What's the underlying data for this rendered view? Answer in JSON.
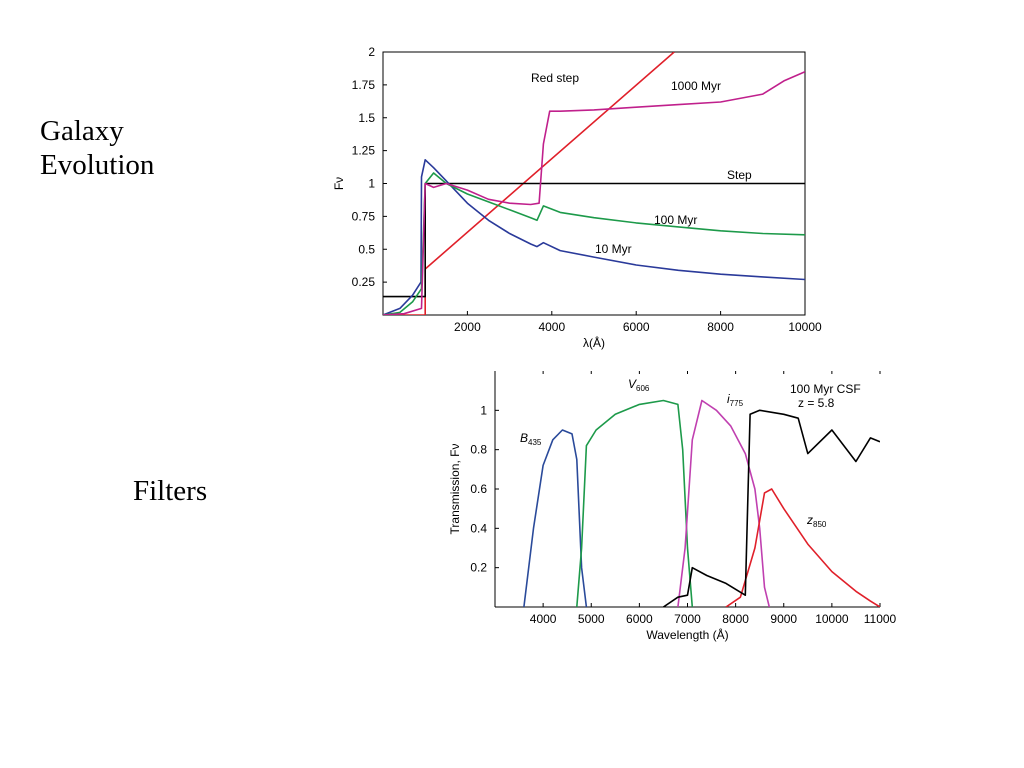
{
  "slide": {
    "label_evolution": "Galaxy\nEvolution",
    "label_filters": "Filters"
  },
  "chart_data": [
    {
      "type": "line",
      "xlabel": "λ(Å)",
      "ylabel": "Fν",
      "xlim": [
        0,
        10000
      ],
      "ylim": [
        0,
        2
      ],
      "x_ticks": [
        "2000",
        "4000",
        "6000",
        "8000",
        "10000"
      ],
      "y_ticks": [
        "0.25",
        "0.5",
        "0.75",
        "1",
        "1.25",
        "1.5",
        "1.75",
        "2"
      ],
      "annotations": [
        "Red step",
        "1000 Myr",
        "Step",
        "100 Myr",
        "10 Myr"
      ],
      "series": [
        {
          "name": "Red step",
          "color": "#e0202a",
          "x": [
            0,
            1000,
            1000,
            6900
          ],
          "y": [
            0,
            0,
            0.35,
            2.0
          ]
        },
        {
          "name": "Step",
          "color": "#000000",
          "x": [
            0,
            1000,
            1000,
            10000
          ],
          "y": [
            0.14,
            0.14,
            1.0,
            1.0
          ]
        },
        {
          "name": "10 Myr",
          "color": "#2a3a9a",
          "x": [
            0,
            400,
            700,
            900,
            912,
            1000,
            1200,
            1500,
            2000,
            2500,
            3000,
            3500,
            3650,
            3800,
            4200,
            5000,
            6000,
            7000,
            8000,
            9000,
            10000
          ],
          "y": [
            0,
            0.05,
            0.15,
            0.25,
            1.05,
            1.18,
            1.12,
            1.02,
            0.85,
            0.72,
            0.62,
            0.54,
            0.52,
            0.55,
            0.49,
            0.44,
            0.38,
            0.34,
            0.31,
            0.29,
            0.27
          ]
        },
        {
          "name": "100 Myr",
          "color": "#1d9a4a",
          "x": [
            0,
            400,
            700,
            912,
            1000,
            1200,
            1500,
            2000,
            2500,
            3000,
            3500,
            3650,
            3800,
            4200,
            5000,
            6000,
            7000,
            8000,
            9000,
            10000
          ],
          "y": [
            0,
            0.02,
            0.1,
            0.2,
            1.0,
            1.08,
            1.0,
            0.92,
            0.86,
            0.8,
            0.74,
            0.72,
            0.83,
            0.78,
            0.74,
            0.7,
            0.67,
            0.64,
            0.62,
            0.61
          ]
        },
        {
          "name": "1000 Myr",
          "color": "#c0208c",
          "x": [
            0,
            500,
            912,
            1000,
            1200,
            1500,
            2000,
            2500,
            3000,
            3500,
            3700,
            3800,
            3950,
            4200,
            5000,
            6000,
            7000,
            8000,
            9000,
            9500,
            10000
          ],
          "y": [
            0,
            0.01,
            0.05,
            1.0,
            0.97,
            1.0,
            0.95,
            0.88,
            0.85,
            0.84,
            0.85,
            1.3,
            1.55,
            1.55,
            1.56,
            1.58,
            1.6,
            1.62,
            1.68,
            1.78,
            1.85
          ]
        }
      ]
    },
    {
      "type": "line",
      "xlabel": "Wavelength (Å)",
      "ylabel": "Transmission, Fν",
      "xlim": [
        3000,
        11000
      ],
      "ylim": [
        0,
        1.2
      ],
      "x_ticks": [
        "4000",
        "5000",
        "6000",
        "7000",
        "8000",
        "9000",
        "10000",
        "11000"
      ],
      "y_ticks": [
        "0.2",
        "0.4",
        "0.6",
        "0.8",
        "1"
      ],
      "annotations": [
        "100 Myr CSF",
        "z = 5.8"
      ],
      "filter_labels": [
        {
          "main": "B",
          "sub": "435"
        },
        {
          "main": "V",
          "sub": "606"
        },
        {
          "main": "i",
          "sub": "775"
        },
        {
          "main": "z",
          "sub": "850"
        }
      ],
      "series": [
        {
          "name": "B435",
          "color": "#2a4a9a",
          "x": [
            3600,
            3800,
            4000,
            4200,
            4400,
            4600,
            4700,
            4800,
            4900
          ],
          "y": [
            0,
            0.4,
            0.72,
            0.85,
            0.9,
            0.88,
            0.75,
            0.2,
            0
          ]
        },
        {
          "name": "V606",
          "color": "#1d9a4a",
          "x": [
            4700,
            4800,
            4900,
            5100,
            5500,
            6000,
            6500,
            6800,
            6900,
            7000,
            7100
          ],
          "y": [
            0,
            0.3,
            0.82,
            0.9,
            0.98,
            1.03,
            1.05,
            1.03,
            0.8,
            0.3,
            0
          ]
        },
        {
          "name": "i775",
          "color": "#c040b0",
          "x": [
            6800,
            6950,
            7100,
            7300,
            7600,
            7900,
            8200,
            8400,
            8500,
            8600,
            8700
          ],
          "y": [
            0,
            0.3,
            0.85,
            1.05,
            1.0,
            0.92,
            0.78,
            0.6,
            0.4,
            0.1,
            0
          ]
        },
        {
          "name": "z850",
          "color": "#e0202a",
          "x": [
            7800,
            8100,
            8400,
            8600,
            8750,
            9000,
            9500,
            10000,
            10500,
            10800,
            11000
          ],
          "y": [
            0,
            0.05,
            0.3,
            0.58,
            0.6,
            0.5,
            0.32,
            0.18,
            0.08,
            0.03,
            0
          ]
        },
        {
          "name": "100 Myr CSF",
          "color": "#000000",
          "x": [
            6500,
            6800,
            7000,
            7100,
            7400,
            7800,
            8200,
            8260,
            8300,
            8500,
            9000,
            9300,
            9500,
            10000,
            10500,
            10800,
            11000
          ],
          "y": [
            0,
            0.05,
            0.06,
            0.2,
            0.16,
            0.12,
            0.06,
            0.6,
            0.98,
            1.0,
            0.98,
            0.96,
            0.78,
            0.9,
            0.74,
            0.86,
            0.84
          ]
        }
      ]
    }
  ]
}
